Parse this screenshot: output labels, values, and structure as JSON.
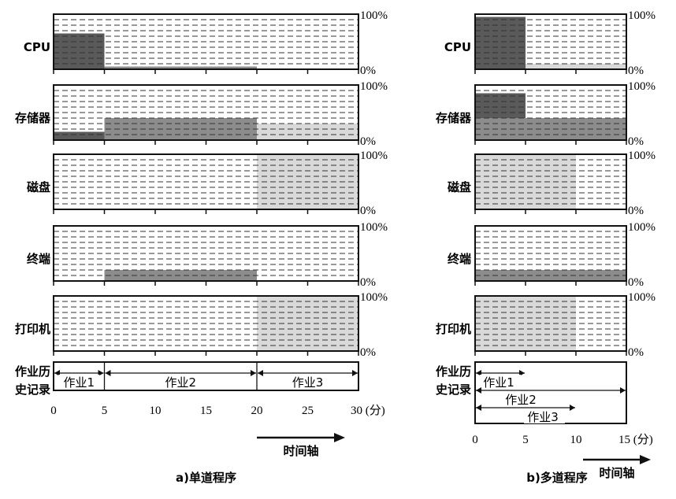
{
  "resources": [
    {
      "key": "cpu",
      "label": "CPU"
    },
    {
      "key": "mem",
      "label": "存储器"
    },
    {
      "key": "disk",
      "label": "磁盘"
    },
    {
      "key": "term",
      "label": "终端"
    },
    {
      "key": "printer",
      "label": "打印机"
    }
  ],
  "pct_top": "100%",
  "pct_bottom": "0%",
  "history_label": [
    "作业历",
    "史记录"
  ],
  "time_axis_label": "时间轴",
  "colors": {
    "dark": "#5a5a5a",
    "medium": "#8c8c8c",
    "light": "#d9d9d9",
    "frame": "#111111",
    "dash": "#333333"
  },
  "panels": [
    {
      "key": "single",
      "caption": "a)单道程序",
      "time_max": 30,
      "ticks": [
        "0",
        "5",
        "10",
        "15",
        "20",
        "25",
        "30 (分)"
      ],
      "tick_values": [
        0,
        5,
        10,
        15,
        20,
        25,
        30
      ],
      "bars": {
        "cpu": [
          {
            "start": 0,
            "end": 5,
            "level": 0.65,
            "shade": "dark"
          },
          {
            "start": 5,
            "end": 20,
            "level": 0.05,
            "shade": "medium"
          }
        ],
        "mem": [
          {
            "start": 0,
            "end": 5,
            "level": 0.15,
            "shade": "dark"
          },
          {
            "start": 5,
            "end": 20,
            "level": 0.4,
            "shade": "medium"
          },
          {
            "start": 20,
            "end": 30,
            "level": 0.3,
            "shade": "light"
          }
        ],
        "disk": [
          {
            "start": 20,
            "end": 30,
            "level": 1.0,
            "shade": "light"
          }
        ],
        "term": [
          {
            "start": 5,
            "end": 20,
            "level": 0.2,
            "shade": "medium"
          }
        ],
        "printer": [
          {
            "start": 20,
            "end": 30,
            "level": 1.0,
            "shade": "light"
          }
        ]
      },
      "jobs": [
        {
          "label": "作业1",
          "start": 0,
          "end": 5,
          "row": 0
        },
        {
          "label": "作业2",
          "start": 5,
          "end": 20,
          "row": 0
        },
        {
          "label": "作业3",
          "start": 20,
          "end": 30,
          "row": 0
        }
      ]
    },
    {
      "key": "multi",
      "caption": "b)多道程序",
      "time_max": 15,
      "ticks": [
        "0",
        "5",
        "10",
        "15 (分)"
      ],
      "tick_values": [
        0,
        5,
        10,
        15
      ],
      "bars": {
        "cpu": [
          {
            "start": 0,
            "end": 5,
            "level": 0.95,
            "shade": "dark"
          },
          {
            "start": 5,
            "end": 15,
            "level": 0.1,
            "shade": "light"
          }
        ],
        "mem": [
          {
            "start": 0,
            "end": 5,
            "level": 0.85,
            "shade": "dark"
          },
          {
            "start": 0,
            "end": 15,
            "level": 0.4,
            "shade": "medium"
          }
        ],
        "disk": [
          {
            "start": 0,
            "end": 10,
            "level": 1.0,
            "shade": "light"
          }
        ],
        "term": [
          {
            "start": 0,
            "end": 15,
            "level": 0.2,
            "shade": "medium"
          }
        ],
        "printer": [
          {
            "start": 0,
            "end": 10,
            "level": 1.0,
            "shade": "light"
          }
        ]
      },
      "jobs": [
        {
          "label": "作业1",
          "start": 0,
          "end": 5,
          "row": 0
        },
        {
          "label": "作业2",
          "start": 0,
          "end": 15,
          "row": 1
        },
        {
          "label": "作业3",
          "start": 0,
          "end": 10,
          "row": 2
        }
      ]
    }
  ]
}
